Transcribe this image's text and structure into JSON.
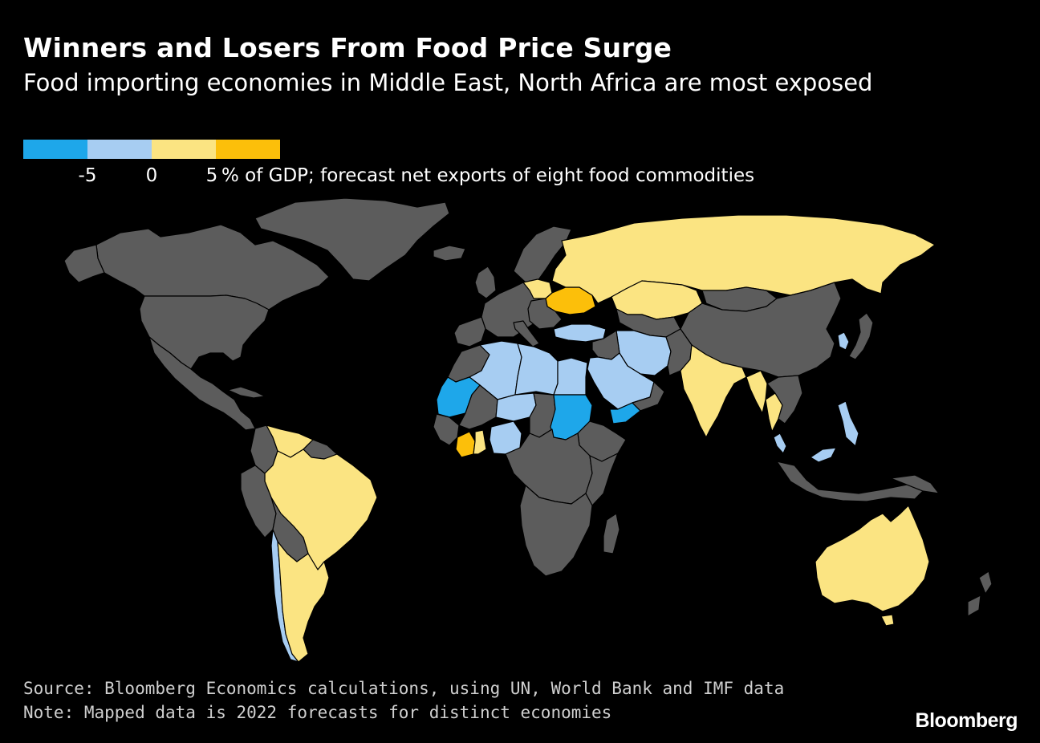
{
  "header": {
    "title": "Winners and Losers From Food Price Surge",
    "subtitle": "Food importing economies in Middle East, North Africa are most exposed"
  },
  "legend": {
    "colors": [
      "#1ea7ea",
      "#a7cdf2",
      "#fbe482",
      "#fcbf0a"
    ],
    "ticks": [
      "-5",
      "0",
      "5"
    ],
    "caption": "% of GDP; forecast net exports of eight food commodities"
  },
  "map": {
    "colors": {
      "no_data": "#5c5c5c",
      "border": "#000000",
      "ocean": "#000000"
    },
    "categories": {
      "strong_importer": [
        "Mauritania",
        "Sudan",
        "Yemen"
      ],
      "importer": [
        "Algeria",
        "Libya",
        "Niger",
        "Nigeria",
        "Egypt",
        "Saudi Arabia",
        "Iran",
        "Turkey",
        "Chile",
        "Malaysia",
        "Philippines",
        "South Korea"
      ],
      "exporter": [
        "Russia",
        "Kazakhstan",
        "Poland",
        "India",
        "Thailand",
        "Myanmar",
        "Brazil",
        "Argentina",
        "Venezuela",
        "Australia"
      ],
      "strong_exporter": [
        "Ukraine",
        "Ivory Coast"
      ]
    }
  },
  "footer": {
    "source": "Source: Bloomberg Economics calculations, using UN, World Bank and IMF data",
    "note": "Note: Mapped data is 2022 forecasts for distinct economies",
    "brand": "Bloomberg"
  }
}
